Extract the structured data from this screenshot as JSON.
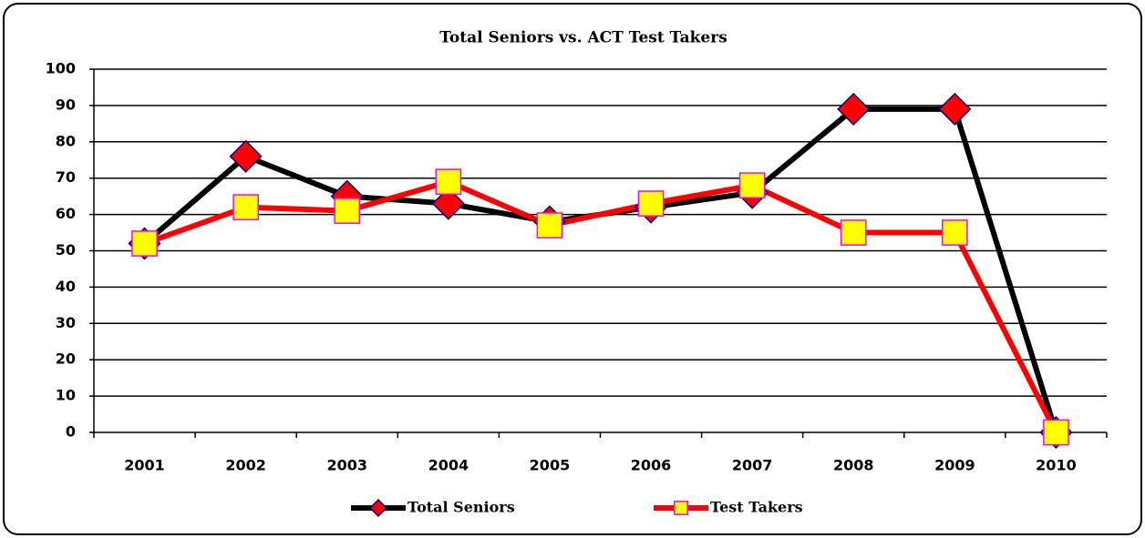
{
  "chart_data": {
    "type": "line",
    "title": "Total Seniors vs. ACT Test Takers",
    "categories": [
      "2001",
      "2002",
      "2003",
      "2004",
      "2005",
      "2006",
      "2007",
      "2008",
      "2009",
      "2010"
    ],
    "series": [
      {
        "name": "Total Seniors",
        "color": "#000000",
        "marker": "diamond",
        "marker_fill": "#ff0000",
        "marker_edge": "#000080",
        "values": [
          52,
          76,
          65,
          63,
          58,
          62,
          66,
          89,
          89,
          0
        ]
      },
      {
        "name": "Test Takers",
        "color": "#ff0000",
        "marker": "square",
        "marker_fill": "#ffff00",
        "marker_edge": "#ff00ff",
        "values": [
          52,
          62,
          61,
          69,
          57,
          63,
          68,
          55,
          55,
          0
        ]
      }
    ],
    "ylim": [
      0,
      100
    ],
    "yticks": [
      0,
      10,
      20,
      30,
      40,
      50,
      60,
      70,
      80,
      90,
      100
    ],
    "grid": true,
    "legend": "bottom"
  }
}
